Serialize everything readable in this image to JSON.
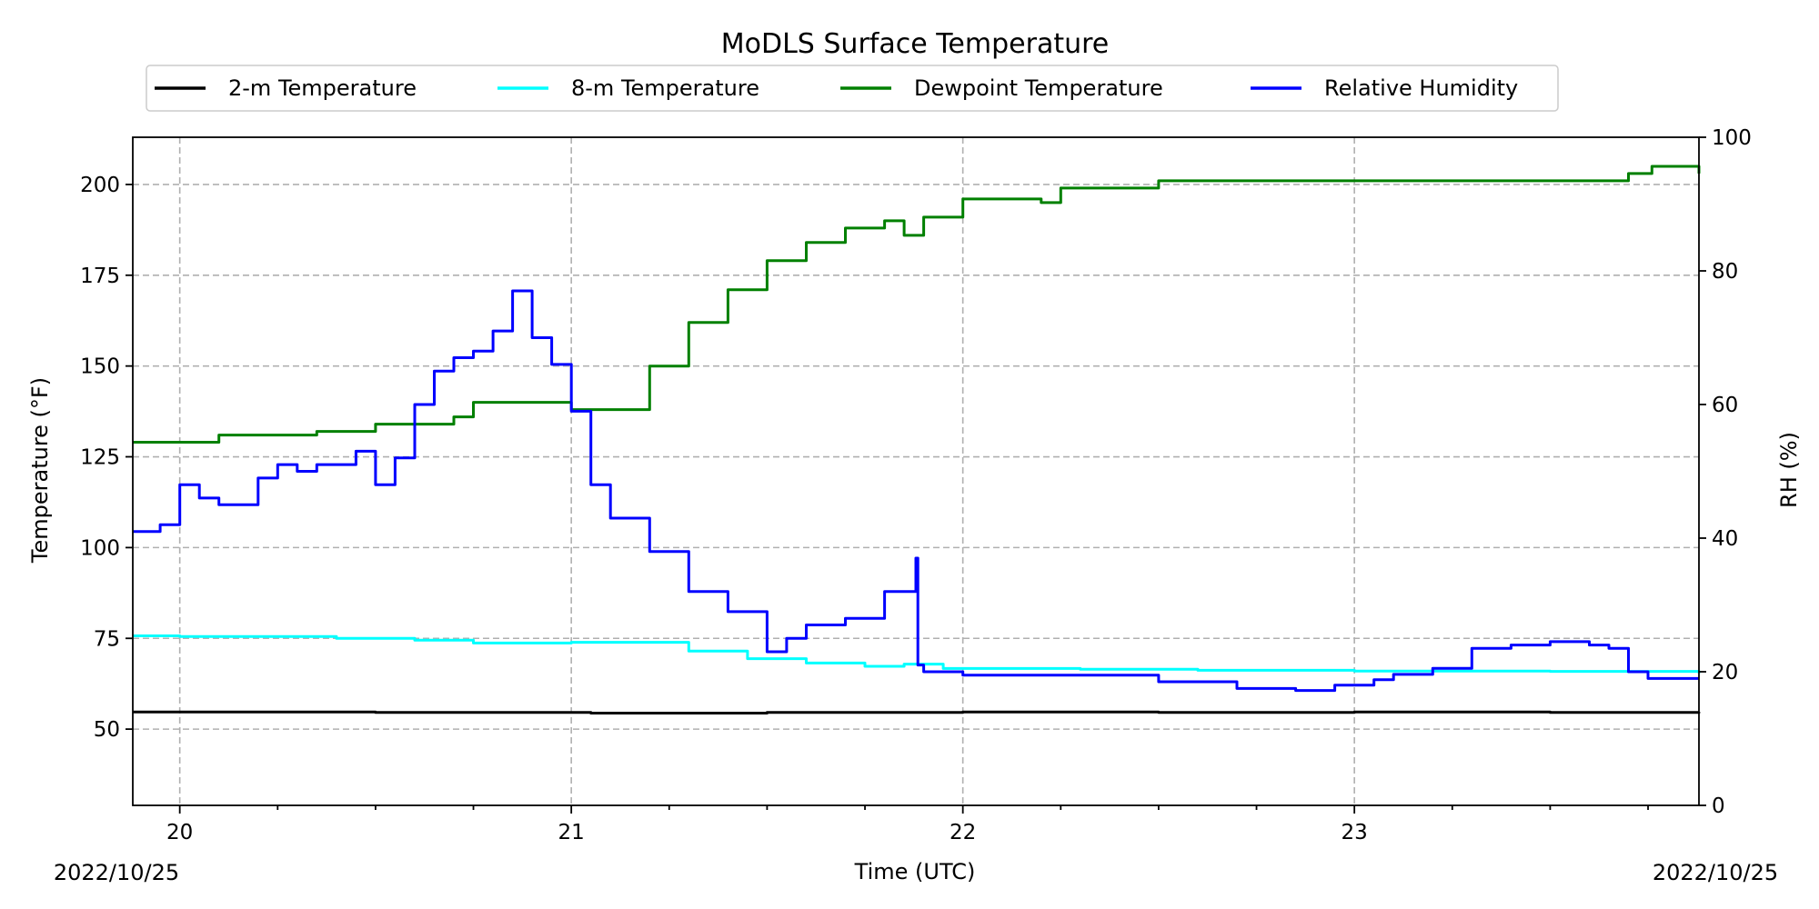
{
  "chart_data": {
    "type": "line",
    "title": "MoDLS Surface Temperature",
    "xlabel": "Time (UTC)",
    "ylabel_left": "Temperature (°F)",
    "ylabel_right": "RH (%)",
    "x_start_label": "2022/10/25",
    "x_end_label": "2022/10/25",
    "x_unit": "hour (UTC)",
    "xlim": [
      19.88,
      23.88
    ],
    "x_ticks": [
      20,
      21,
      22,
      23
    ],
    "x_tick_labels": [
      "20",
      "21",
      "22",
      "23"
    ],
    "ylim_left": [
      29,
      213
    ],
    "y_ticks_left": [
      50,
      75,
      100,
      125,
      150,
      175,
      200
    ],
    "ylim_right": [
      0,
      100
    ],
    "y_ticks_right": [
      0,
      20,
      40,
      60,
      80,
      100
    ],
    "grid": true,
    "legend_placement": "above plot, single row",
    "series": [
      {
        "name": "2-m Temperature",
        "axis": "left",
        "color": "#000000",
        "x": [
          19.88,
          20.5,
          21.0,
          21.05,
          21.5,
          22.0,
          22.5,
          23.0,
          23.5,
          23.88
        ],
        "values": [
          54.7,
          54.6,
          54.6,
          54.4,
          54.6,
          54.7,
          54.6,
          54.7,
          54.6,
          54.7
        ]
      },
      {
        "name": "8-m Temperature",
        "axis": "left",
        "color": "#00ffff",
        "x": [
          19.88,
          20.0,
          20.4,
          20.6,
          20.75,
          21.0,
          21.17,
          21.3,
          21.45,
          21.6,
          21.75,
          21.85,
          21.95,
          22.3,
          22.6,
          23.0,
          23.5,
          23.88
        ],
        "values": [
          75.7,
          75.5,
          75.0,
          74.5,
          73.7,
          73.9,
          73.9,
          71.5,
          69.4,
          68.2,
          67.3,
          67.9,
          66.7,
          66.5,
          66.2,
          66.0,
          65.9,
          65.4
        ]
      },
      {
        "name": "Dewpoint Temperature",
        "axis": "left",
        "color": "#008000",
        "x": [
          19.88,
          20.05,
          20.1,
          20.2,
          20.35,
          20.5,
          20.7,
          20.75,
          20.9,
          21.0,
          21.15,
          21.2,
          21.3,
          21.4,
          21.5,
          21.6,
          21.7,
          21.8,
          21.85,
          21.9,
          22.0,
          22.15,
          22.2,
          22.25,
          22.35,
          22.5,
          22.75,
          23.0,
          23.2,
          23.3,
          23.5,
          23.7,
          23.76,
          23.88
        ],
        "values": [
          129,
          129,
          131,
          131,
          132,
          134,
          136,
          140,
          140,
          138,
          138,
          150,
          162,
          171,
          179,
          184,
          188,
          190,
          186,
          191,
          196,
          196,
          195,
          199,
          199,
          201,
          201,
          201,
          201,
          201,
          201,
          203,
          205,
          203
        ]
      },
      {
        "name": "Relative Humidity",
        "axis": "right",
        "color": "#0000ff",
        "x": [
          19.88,
          19.95,
          20.0,
          20.05,
          20.1,
          20.2,
          20.25,
          20.3,
          20.35,
          20.45,
          20.5,
          20.55,
          20.6,
          20.65,
          20.7,
          20.75,
          20.8,
          20.85,
          20.9,
          20.95,
          21.0,
          21.05,
          21.1,
          21.2,
          21.3,
          21.4,
          21.5,
          21.55,
          21.6,
          21.7,
          21.8,
          21.88,
          21.885,
          21.9,
          22.0,
          22.1,
          22.3,
          22.5,
          22.7,
          22.85,
          22.95,
          23.05,
          23.1,
          23.2,
          23.3,
          23.4,
          23.5,
          23.6,
          23.65,
          23.7,
          23.75,
          23.88
        ],
        "values": [
          41,
          42,
          48,
          46,
          45,
          49,
          51,
          50,
          51,
          53,
          48,
          52,
          60,
          65,
          67,
          68,
          71,
          77,
          70,
          66,
          59,
          48,
          43,
          38,
          32,
          29,
          23,
          25,
          27,
          28,
          32,
          37,
          21,
          20,
          19.5,
          19.5,
          19.5,
          18.5,
          17.5,
          17.2,
          18,
          18.8,
          19.6,
          20.5,
          23.5,
          24,
          24.5,
          24,
          23.5,
          20,
          19,
          19
        ]
      }
    ]
  }
}
